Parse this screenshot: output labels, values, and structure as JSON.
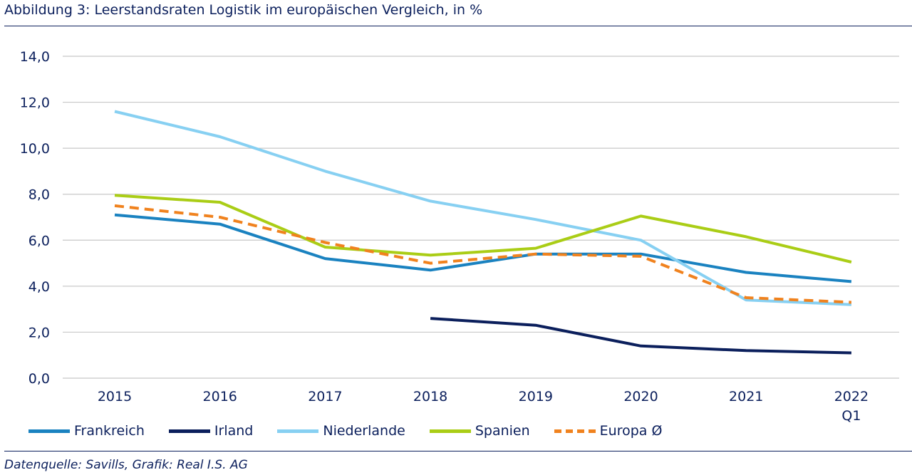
{
  "header": {
    "title": "Abbildung 3: Leerstandsraten Logistik im europäischen Vergleich, in %"
  },
  "footer": {
    "source": "Datenquelle: Savills, Grafik: Real I.S. AG"
  },
  "chart_data": {
    "type": "line",
    "title": "",
    "xlabel": "",
    "ylabel": "",
    "categories": [
      "2015",
      "2016",
      "2017",
      "2018",
      "2019",
      "2020",
      "2021",
      "2022\nQ1"
    ],
    "ylim": [
      0,
      14
    ],
    "yticks": [
      "0,0",
      "2,0",
      "4,0",
      "6,0",
      "8,0",
      "10,0",
      "12,0",
      "14,0"
    ],
    "grid": true,
    "legend_position": "bottom",
    "series": [
      {
        "name": "Frankreich",
        "color": "#1a82c0",
        "dashed": false,
        "values": [
          7.1,
          6.7,
          5.2,
          4.7,
          5.4,
          5.4,
          4.6,
          4.2
        ]
      },
      {
        "name": "Irland",
        "color": "#0b1f5c",
        "dashed": false,
        "values": [
          null,
          null,
          null,
          2.6,
          2.3,
          1.4,
          1.2,
          1.1
        ]
      },
      {
        "name": "Niederlande",
        "color": "#87d0f2",
        "dashed": false,
        "values": [
          11.6,
          10.5,
          9.0,
          7.7,
          6.9,
          6.0,
          3.4,
          3.2
        ]
      },
      {
        "name": "Spanien",
        "color": "#aacd16",
        "dashed": false,
        "values": [
          7.95,
          7.65,
          5.7,
          5.35,
          5.65,
          7.05,
          6.15,
          5.05
        ]
      },
      {
        "name": "Europa Ø",
        "color": "#f0821e",
        "dashed": true,
        "values": [
          7.5,
          7.0,
          5.9,
          5.0,
          5.4,
          5.3,
          3.5,
          3.3
        ]
      }
    ]
  }
}
